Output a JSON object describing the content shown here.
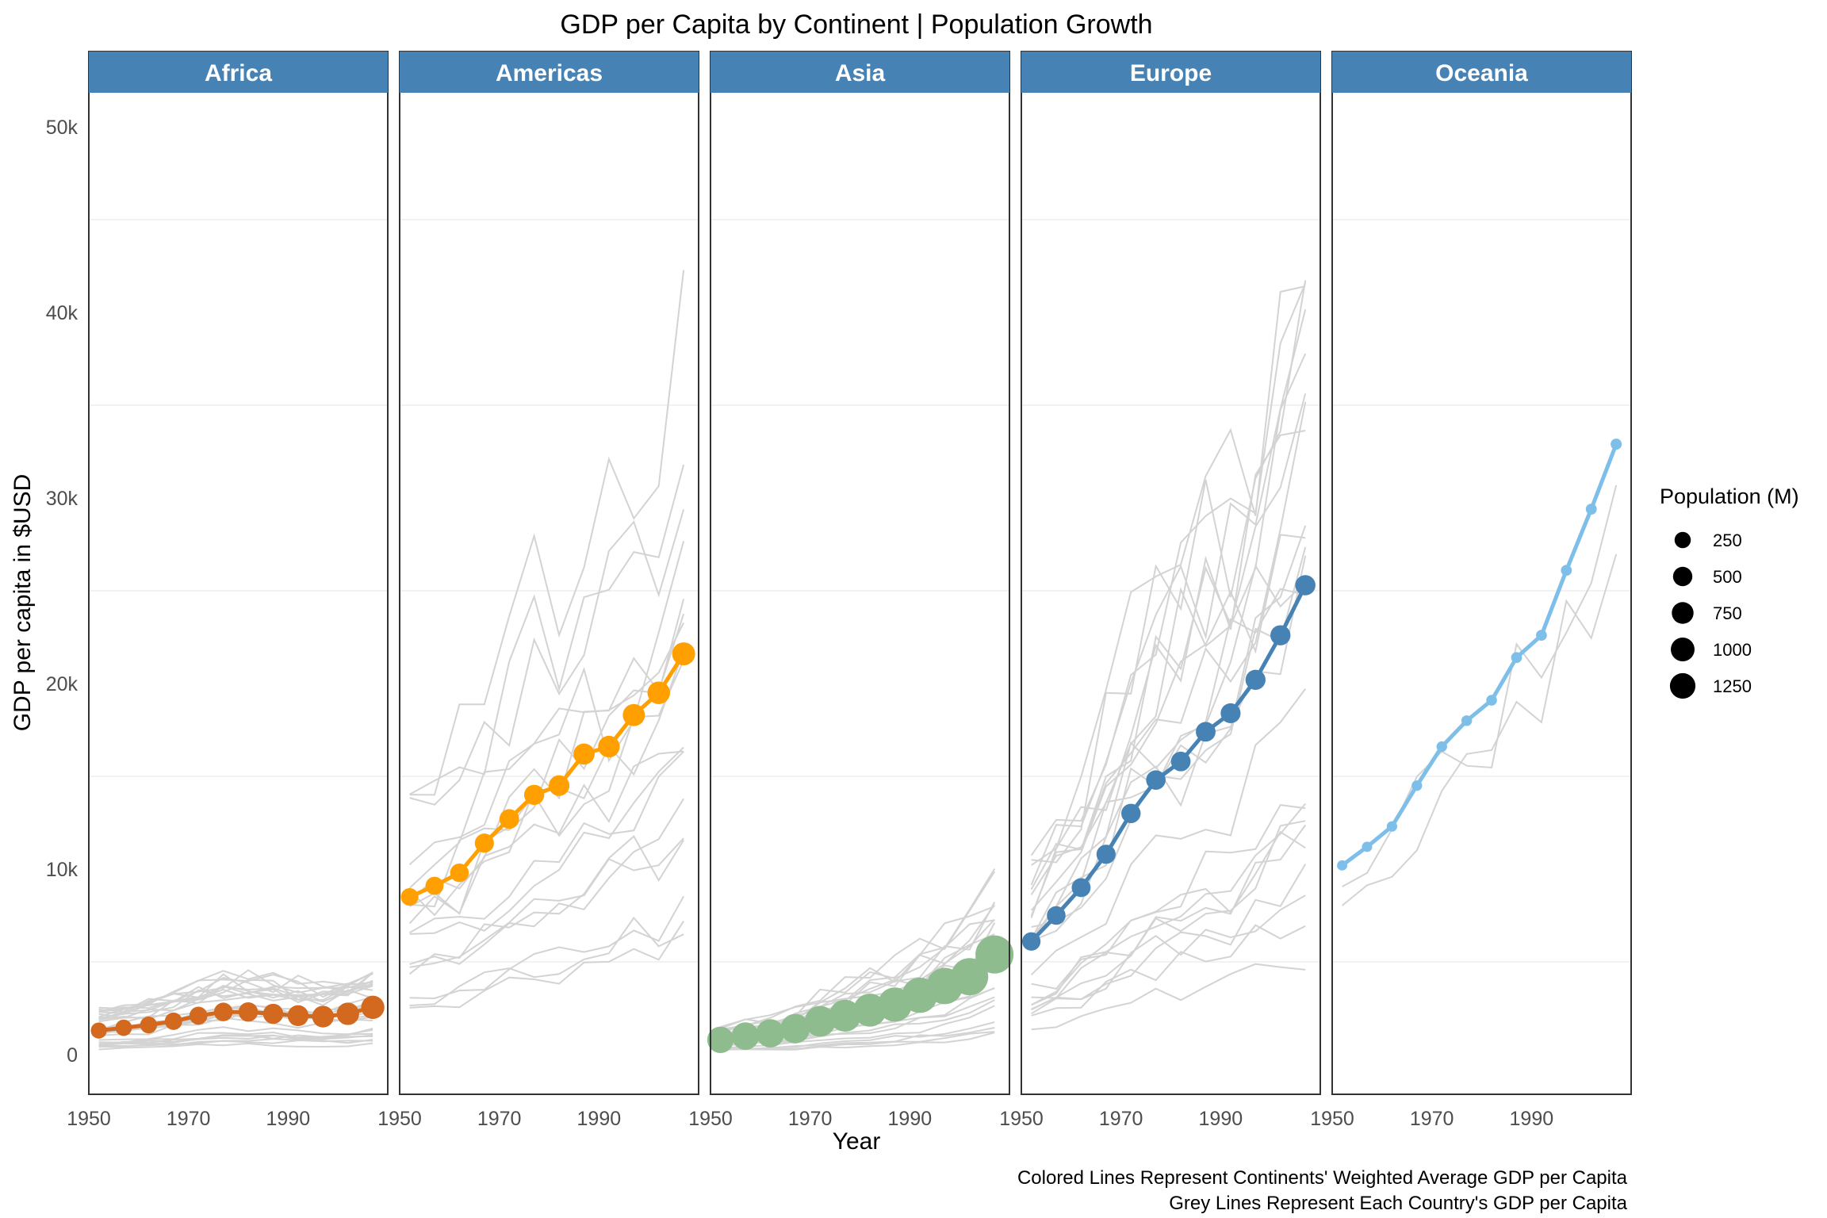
{
  "chart_data": {
    "type": "line",
    "title": "GDP per Capita by Continent | Population Growth",
    "xlabel": "Year",
    "ylabel": "GDP per capita in $USD",
    "ylim": [
      -2000,
      52500
    ],
    "xlim": [
      1950,
      2010
    ],
    "y_ticks": [
      0,
      10000,
      20000,
      30000,
      40000,
      50000
    ],
    "y_tick_labels": [
      "0",
      "10k",
      "20k",
      "30k",
      "40k",
      "50k"
    ],
    "x_ticks": [
      1950,
      1970,
      1990
    ],
    "x_tick_labels": [
      "1950",
      "1970",
      "1990"
    ],
    "grid": true,
    "facet_by": "continent",
    "years": [
      1952,
      1957,
      1962,
      1967,
      1972,
      1977,
      1982,
      1987,
      1992,
      1997,
      2002,
      2007
    ],
    "panels": [
      {
        "name": "Africa",
        "color": "#d2691e",
        "gdp": [
          1300,
          1450,
          1600,
          1800,
          2100,
          2300,
          2300,
          2200,
          2100,
          2050,
          2200,
          2550
        ],
        "pop_m": [
          237,
          264,
          296,
          335,
          380,
          435,
          499,
          574,
          659,
          744,
          834,
          930
        ]
      },
      {
        "name": "Americas",
        "color": "#ff9f00",
        "gdp": [
          8500,
          9100,
          9800,
          11400,
          12700,
          14000,
          14500,
          16200,
          16600,
          18300,
          19500,
          21600
        ],
        "pop_m": [
          345,
          386,
          433,
          481,
          529,
          578,
          630,
          683,
          739,
          796,
          849,
          899
        ]
      },
      {
        "name": "Asia",
        "color": "#8fbc8f",
        "gdp": [
          800,
          1000,
          1150,
          1400,
          1800,
          2100,
          2400,
          2700,
          3200,
          3700,
          4200,
          5400
        ],
        "pop_m": [
          1395,
          1562,
          1697,
          1906,
          2150,
          2384,
          2611,
          2871,
          3133,
          3383,
          3601,
          3812
        ]
      },
      {
        "name": "Europe",
        "color": "#4682b4",
        "gdp": [
          6100,
          7500,
          9000,
          10800,
          13000,
          14800,
          15800,
          17400,
          18400,
          20200,
          22600,
          25300
        ],
        "pop_m": [
          418,
          438,
          461,
          481,
          500,
          514,
          525,
          536,
          555,
          567,
          575,
          586
        ]
      },
      {
        "name": "Oceania",
        "color": "#7ebfea",
        "gdp": [
          10200,
          11200,
          12300,
          14500,
          16600,
          18000,
          19100,
          21400,
          22600,
          26100,
          29400,
          32900
        ],
        "pop_m": [
          10,
          11,
          13,
          14,
          16,
          17,
          18,
          20,
          21,
          22,
          23,
          25
        ]
      }
    ],
    "legend": {
      "title": "Population (M)",
      "position": "right",
      "entries": [
        {
          "label": "250",
          "value": 250
        },
        {
          "label": "500",
          "value": 500
        },
        {
          "label": "750",
          "value": 750
        },
        {
          "label": "1000",
          "value": 1000
        },
        {
          "label": "1250",
          "value": 1250
        }
      ]
    },
    "caption_lines": [
      "Colored Lines Represent Continents' Weighted Average GDP per Capita",
      "Grey Lines Represent Each Country's GDP per Capita"
    ],
    "strip_color": "#4682b4",
    "country_line_color": "#d3d3d3"
  }
}
